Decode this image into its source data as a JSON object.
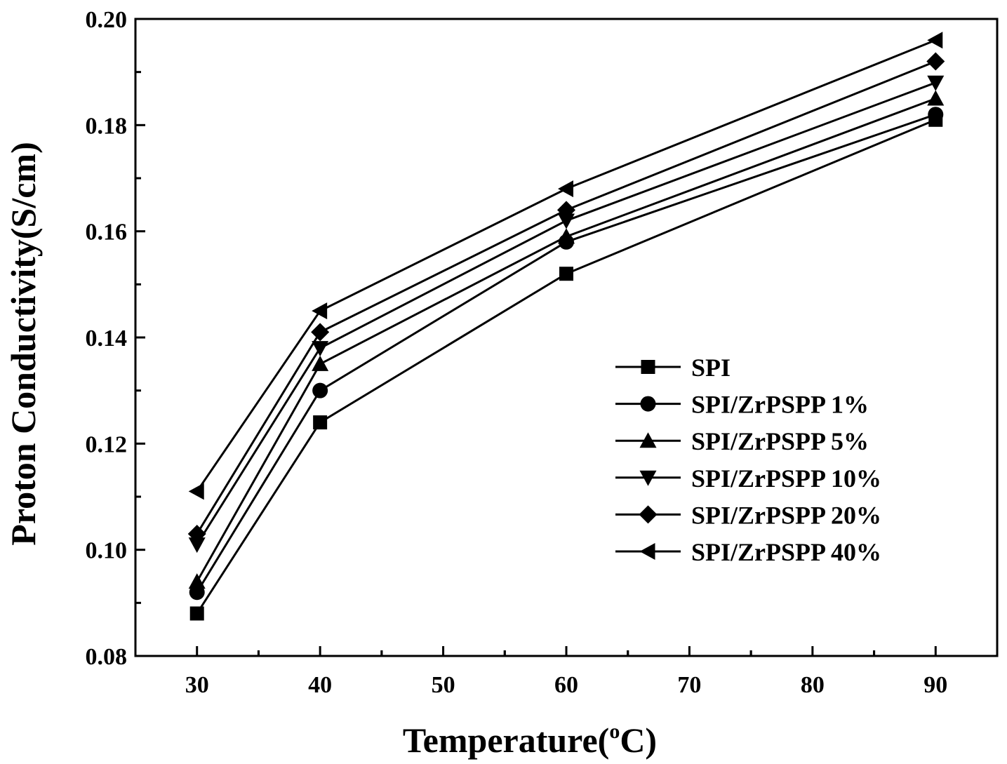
{
  "chart_data": {
    "type": "line",
    "title": "",
    "xlabel": "Temperature(",
    "xlabel_sup": "o",
    "xlabel_tail": "C)",
    "ylabel": "Proton Conductivity(S/cm)",
    "x": [
      30,
      40,
      60,
      90
    ],
    "xlim": [
      25,
      95
    ],
    "ylim": [
      0.08,
      0.2
    ],
    "x_ticks": [
      30,
      40,
      50,
      60,
      70,
      80,
      90
    ],
    "x_tick_labels": [
      "30",
      "40",
      "50",
      "60",
      "70",
      "80",
      "90"
    ],
    "y_ticks": [
      0.08,
      0.1,
      0.12,
      0.14,
      0.16,
      0.18,
      0.2
    ],
    "y_tick_labels": [
      "0.08",
      "0.10",
      "0.12",
      "0.14",
      "0.16",
      "0.18",
      "0.20"
    ],
    "grid": false,
    "legend_position": "bottom-right",
    "series": [
      {
        "name": "SPI",
        "marker": "square",
        "values": [
          0.088,
          0.124,
          0.152,
          0.181
        ]
      },
      {
        "name": "SPI/ZrPSPP 1%",
        "marker": "circle",
        "values": [
          0.092,
          0.13,
          0.158,
          0.182
        ]
      },
      {
        "name": "SPI/ZrPSPP 5%",
        "marker": "triangle-up",
        "values": [
          0.094,
          0.135,
          0.159,
          0.185
        ]
      },
      {
        "name": "SPI/ZrPSPP 10%",
        "marker": "triangle-down",
        "values": [
          0.101,
          0.138,
          0.162,
          0.188
        ]
      },
      {
        "name": "SPI/ZrPSPP 20%",
        "marker": "diamond",
        "values": [
          0.103,
          0.141,
          0.164,
          0.192
        ]
      },
      {
        "name": "SPI/ZrPSPP 40%",
        "marker": "triangle-left",
        "values": [
          0.111,
          0.145,
          0.168,
          0.196
        ]
      }
    ]
  }
}
